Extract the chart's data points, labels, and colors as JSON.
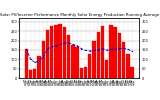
{
  "title": "Solar PV/Inverter Performance Monthly Solar Energy Production Running Average",
  "title_fontsize": 2.8,
  "months": [
    "Nov\n'07",
    "Dec\n'07",
    "Jan\n'08",
    "Feb\n'08",
    "Mar\n'08",
    "Apr\n'08",
    "May\n'08",
    "Jun\n'08",
    "Jul\n'08",
    "Aug\n'08",
    "Sep\n'08",
    "Oct\n'08",
    "Nov\n'08",
    "Dec\n'08",
    "Jan\n'09",
    "Feb\n'09",
    "Mar\n'09",
    "Apr\n'09",
    "May\n'09",
    "Jun\n'09",
    "Jul\n'09",
    "Aug\n'09",
    "Sep\n'09",
    "Oct\n'09",
    "Nov\n'09",
    "Dec\n'09"
  ],
  "values": [
    155,
    45,
    50,
    120,
    195,
    255,
    275,
    285,
    290,
    270,
    230,
    175,
    165,
    55,
    60,
    130,
    200,
    245,
    280,
    95,
    285,
    270,
    240,
    190,
    130,
    60
  ],
  "running_avg": [
    155,
    100,
    83,
    92,
    113,
    153,
    167,
    172,
    180,
    185,
    188,
    179,
    173,
    157,
    147,
    144,
    147,
    152,
    157,
    148,
    153,
    155,
    157,
    158,
    153,
    143
  ],
  "bar_color": "#ff0000",
  "avg_color": "#0000cc",
  "bg_color": "#ffffff",
  "plot_bg_color": "#ffffff",
  "grid_color": "#aaaaaa",
  "ylim": [
    0,
    320
  ],
  "yticks": [
    0,
    50,
    100,
    150,
    200,
    250,
    300
  ],
  "ytick_labels": [
    "0",
    "50",
    "100",
    "150",
    "200",
    "250",
    "300"
  ],
  "tick_fontsize": 2.5,
  "label_fontsize": 3.0
}
